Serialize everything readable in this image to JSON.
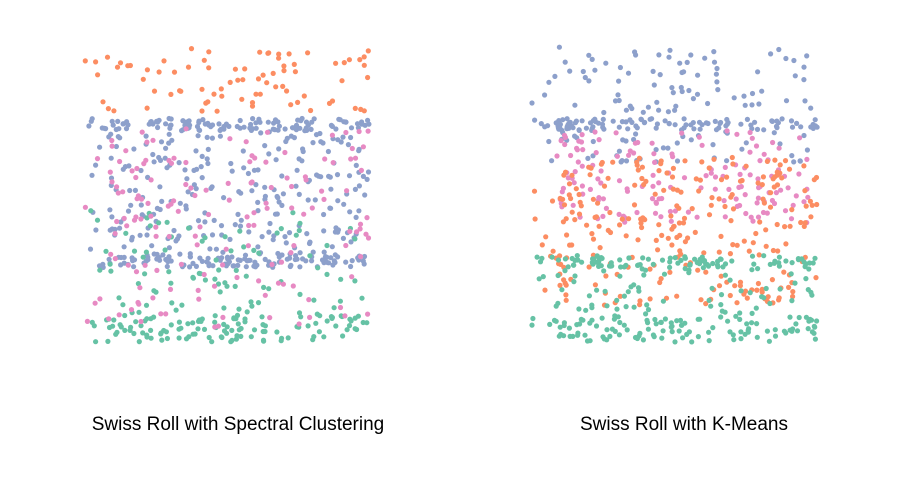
{
  "colors": {
    "teal": "#66c2a5",
    "orange": "#fc8d62",
    "blue": "#8da0cb",
    "pink": "#e78ac3"
  },
  "chart_data": [
    {
      "type": "scatter",
      "title": "Swiss Roll with Spectral Clustering",
      "xlabel": "",
      "ylabel": "",
      "grid": false,
      "axes_visible": false,
      "xlim": [
        0,
        1
      ],
      "ylim": [
        0,
        1
      ],
      "bands": [
        {
          "color": "orange",
          "y": [
            0.77,
            0.99
          ],
          "count": 80,
          "seed": 11
        },
        {
          "color": "blue",
          "y": [
            0.71,
            0.75
          ],
          "count": 110,
          "seed": 12
        },
        {
          "color": "blue",
          "y": [
            0.27,
            0.71
          ],
          "count": 260,
          "seed": 13
        },
        {
          "color": "blue",
          "y": [
            0.25,
            0.29
          ],
          "count": 95,
          "seed": 14
        },
        {
          "color": "teal",
          "y": [
            0.0,
            0.09
          ],
          "count": 120,
          "seed": 15
        },
        {
          "color": "teal",
          "y": [
            0.09,
            0.45
          ],
          "count": 85,
          "seed": 16
        },
        {
          "color": "pink",
          "y": [
            0.05,
            0.72
          ],
          "count": 150,
          "seed": 17
        }
      ]
    },
    {
      "type": "scatter",
      "title": "Swiss Roll with K-Means",
      "xlabel": "",
      "ylabel": "",
      "grid": false,
      "axes_visible": false,
      "xlim": [
        0,
        1
      ],
      "ylim": [
        0,
        1
      ],
      "bands": [
        {
          "color": "blue",
          "y": [
            0.77,
            0.99
          ],
          "count": 80,
          "seed": 21
        },
        {
          "color": "blue",
          "y": [
            0.71,
            0.75
          ],
          "count": 110,
          "seed": 22
        },
        {
          "color": "blue",
          "y": [
            0.6,
            0.71
          ],
          "count": 45,
          "seed": 23
        },
        {
          "color": "pink",
          "y": [
            0.4,
            0.71
          ],
          "count": 150,
          "seed": 24
        },
        {
          "color": "orange",
          "y": [
            0.12,
            0.62
          ],
          "count": 260,
          "seed": 25
        },
        {
          "color": "teal",
          "y": [
            0.25,
            0.29
          ],
          "count": 95,
          "seed": 26
        },
        {
          "color": "teal",
          "y": [
            0.0,
            0.09
          ],
          "count": 120,
          "seed": 27
        },
        {
          "color": "teal",
          "y": [
            0.09,
            0.25
          ],
          "count": 70,
          "seed": 28
        }
      ]
    }
  ]
}
